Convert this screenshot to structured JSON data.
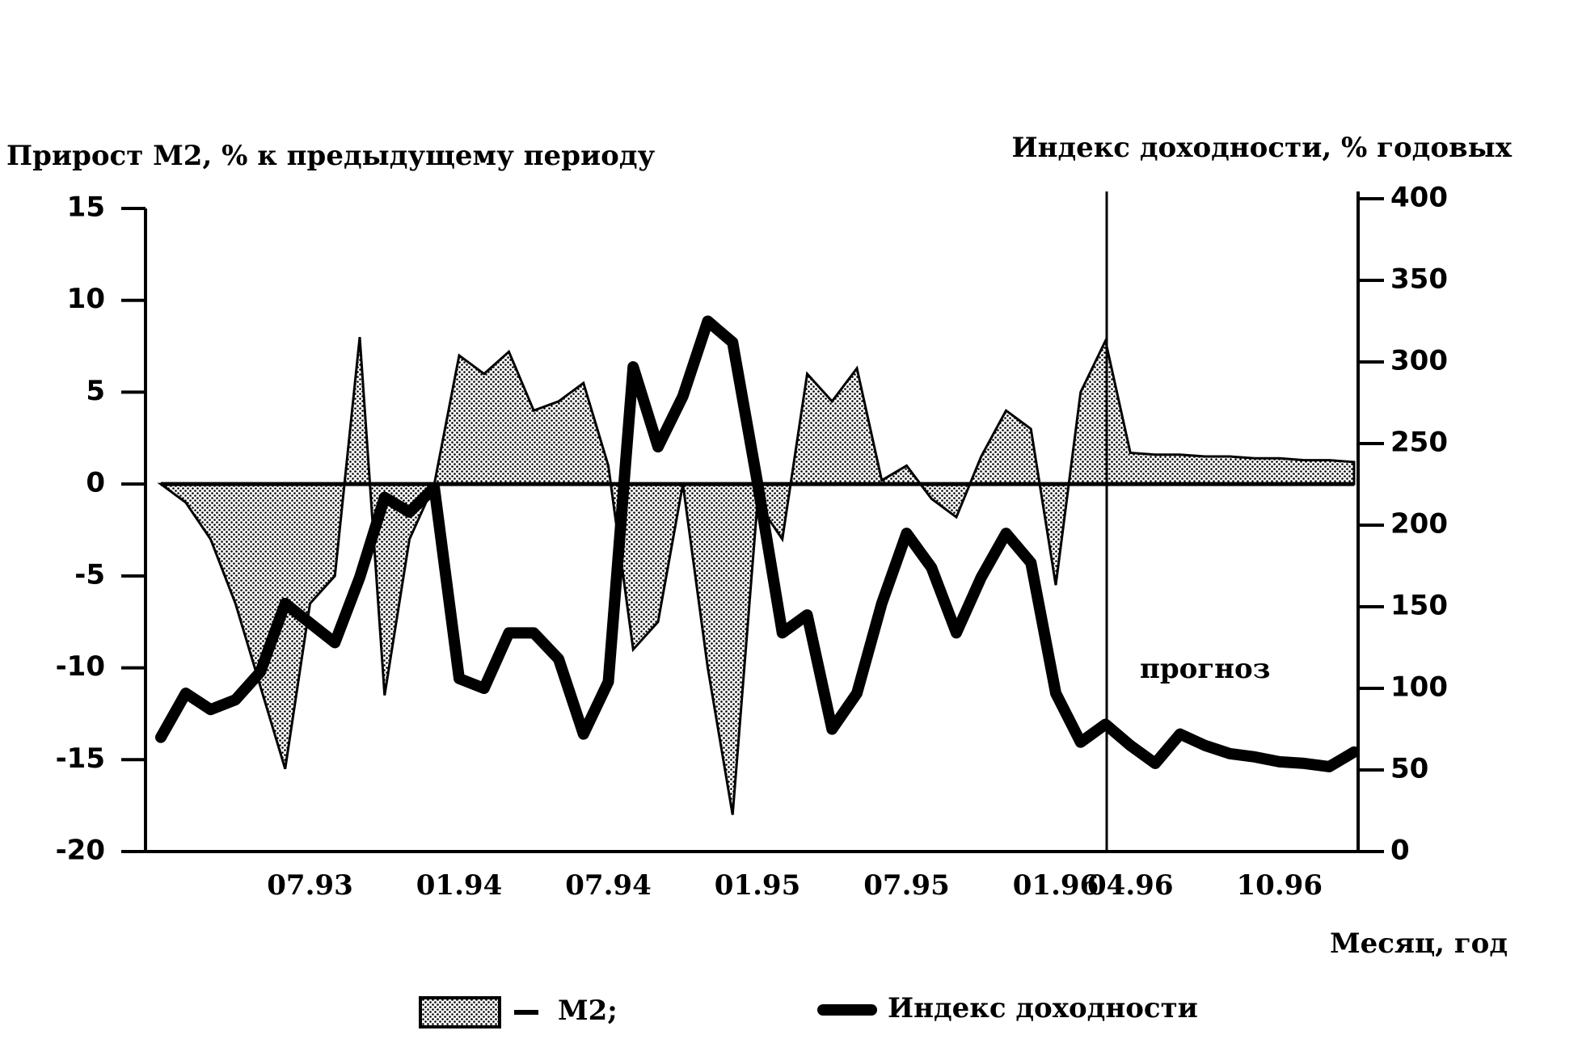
{
  "chart_data": {
    "type": "area-line",
    "y_label": "Прирост М2, % к предыдущему периоду",
    "y2_label": "Индекс доходности, % годовых",
    "x_label": "Месяц, год",
    "annotation": "прогноз",
    "categories": [
      null,
      null,
      null,
      null,
      null,
      null,
      "07.93",
      null,
      null,
      null,
      null,
      null,
      "01.94",
      null,
      null,
      null,
      null,
      null,
      "07.94",
      null,
      null,
      null,
      null,
      null,
      "01.95",
      null,
      null,
      null,
      null,
      null,
      "07.95",
      null,
      null,
      null,
      null,
      null,
      "01.96",
      null,
      null,
      "04.96",
      null,
      null,
      null,
      null,
      null,
      "10.96",
      null,
      null,
      null
    ],
    "ylim": [
      -20,
      15
    ],
    "yticks": [
      -20,
      -15,
      -10,
      -5,
      0,
      5,
      10,
      15
    ],
    "y2lim": [
      0,
      400
    ],
    "y2ticks": [
      0,
      50,
      100,
      150,
      200,
      250,
      300,
      350,
      400
    ],
    "series": [
      {
        "name": "М2;",
        "type": "area",
        "color": "#000000",
        "values": [
          0,
          -1,
          -3,
          -6.5,
          -11,
          -15.5,
          -6.5,
          -5,
          8,
          -11.5,
          -3,
          0,
          7,
          6,
          7.2,
          4,
          4.5,
          5.5,
          1,
          -9,
          -7.5,
          0,
          -10,
          -18,
          -1,
          -3,
          6,
          4.5,
          6.3,
          0.2,
          1,
          -0.8,
          -1.8,
          1.5,
          4,
          3,
          -5.5,
          5,
          7.8,
          1.7,
          1.6,
          1.6,
          1.5,
          1.5,
          1.4,
          1.4,
          1.3,
          1.3,
          1.2
        ]
      },
      {
        "name": "Индекс доходности",
        "type": "line",
        "axis": "y2",
        "color": "#000000",
        "values": [
          70,
          97,
          87,
          93,
          110,
          152,
          140,
          128,
          168,
          217,
          208,
          223,
          106,
          100,
          134,
          134,
          118,
          72,
          104,
          297,
          248,
          279,
          325,
          312,
          226,
          134,
          145,
          75,
          97,
          152,
          195,
          174,
          134,
          168,
          195,
          177,
          97,
          67,
          78,
          65,
          54,
          72,
          65,
          60,
          58,
          55,
          54,
          52,
          61
        ]
      }
    ]
  }
}
